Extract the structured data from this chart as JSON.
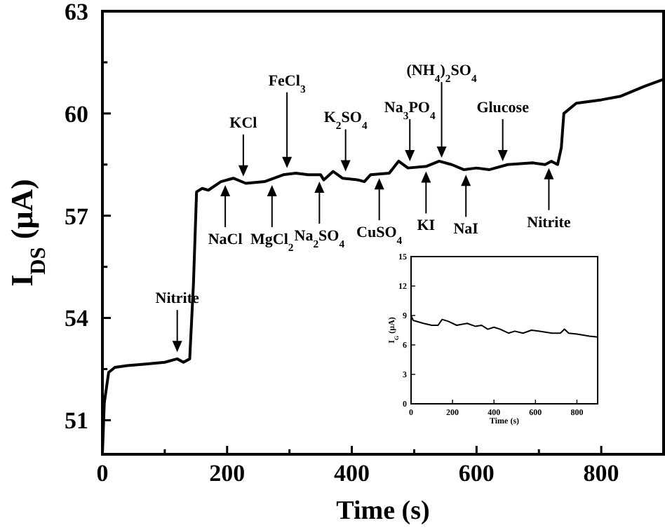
{
  "chart_data": [
    {
      "type": "line",
      "xlabel": "Time (s)",
      "ylabel": "I$_{DS}$ (μA)",
      "xlim": [
        0,
        900
      ],
      "ylim": [
        50,
        63
      ],
      "xticks": [
        0,
        {
          "value": 100,
          "label": null
        },
        200,
        {
          "value": 300,
          "label": null
        },
        400,
        {
          "value": 500,
          "label": null
        },
        600,
        {
          "value": 700,
          "label": null
        },
        800
      ],
      "yticks": [
        51,
        {
          "value": 52.5,
          "label": null
        },
        54,
        {
          "value": 55.5,
          "label": null
        },
        57,
        {
          "value": 58.5,
          "label": null
        },
        60,
        {
          "value": 61.5,
          "label": null
        },
        63
      ],
      "series": [
        {
          "color": "#000000",
          "x": [
            0,
            3,
            10,
            20,
            40,
            70,
            100,
            120,
            130,
            140,
            146,
            151,
            160,
            170,
            190,
            210,
            230,
            260,
            290,
            310,
            330,
            350,
            355,
            370,
            385,
            410,
            420,
            430,
            460,
            475,
            490,
            520,
            540,
            560,
            580,
            600,
            620,
            650,
            690,
            710,
            720,
            730,
            736,
            740,
            760,
            800,
            830,
            870,
            900
          ],
          "values": [
            50,
            51.5,
            52.4,
            52.55,
            52.6,
            52.65,
            52.7,
            52.8,
            52.7,
            52.8,
            55,
            57.7,
            57.8,
            57.75,
            58.0,
            58.1,
            57.95,
            58.0,
            58.2,
            58.25,
            58.2,
            58.2,
            58.05,
            58.3,
            58.1,
            58.05,
            58.0,
            58.2,
            58.25,
            58.6,
            58.4,
            58.45,
            58.6,
            58.5,
            58.35,
            58.4,
            58.35,
            58.5,
            58.55,
            58.5,
            58.6,
            58.5,
            59.0,
            60.0,
            60.3,
            60.4,
            60.5,
            60.8,
            61.0
          ]
        }
      ],
      "annotations": [
        {
          "text": "Nitrite",
          "x": 120,
          "y": 53.0
        },
        {
          "text": "NaCl",
          "x": 197,
          "y": 57.9
        },
        {
          "text": "KCl",
          "x": 226,
          "y": 58.15
        },
        {
          "text": "MgCl$_{2}$",
          "x": 272,
          "y": 57.9
        },
        {
          "text": "FeCl$_{3}$",
          "x": 296,
          "y": 58.4
        },
        {
          "text": "Na$_{2}$SO$_{4}$",
          "x": 348,
          "y": 58.0
        },
        {
          "text": "K$_{2}$SO$_{4}$",
          "x": 390,
          "y": 58.3
        },
        {
          "text": "CuSO$_{4}$",
          "x": 444,
          "y": 58.1
        },
        {
          "text": "Na$_{3}$PO$_{4}$",
          "x": 493,
          "y": 58.6
        },
        {
          "text": "KI",
          "x": 519,
          "y": 58.3
        },
        {
          "text": "(NH$_{4}$)$_{2}$SO$_{4}$",
          "x": 544,
          "y": 58.7
        },
        {
          "text": "NaI",
          "x": 583,
          "y": 58.2
        },
        {
          "text": "Glucose",
          "x": 642,
          "y": 58.6
        },
        {
          "text": "Nitrite",
          "x": 716,
          "y": 58.4
        }
      ]
    },
    {
      "type": "line",
      "xlabel": "Time (s)",
      "ylabel": "I$_{G}$ (μA)",
      "xlim": [
        0,
        900
      ],
      "ylim": [
        0,
        15
      ],
      "xticks": [
        0,
        200,
        400,
        600,
        800
      ],
      "yticks": [
        0,
        3,
        6,
        9,
        12,
        15
      ],
      "series": [
        {
          "color": "#000000",
          "x": [
            0,
            10,
            60,
            100,
            130,
            150,
            180,
            220,
            270,
            310,
            340,
            370,
            400,
            430,
            470,
            500,
            540,
            580,
            620,
            680,
            720,
            740,
            760,
            800,
            860,
            900
          ],
          "values": [
            9,
            8.5,
            8.2,
            8.0,
            8.0,
            8.6,
            8.4,
            8.0,
            8.2,
            7.9,
            8.0,
            7.6,
            7.8,
            7.6,
            7.2,
            7.4,
            7.2,
            7.5,
            7.4,
            7.2,
            7.2,
            7.6,
            7.2,
            7.1,
            6.9,
            6.8
          ]
        }
      ]
    }
  ]
}
